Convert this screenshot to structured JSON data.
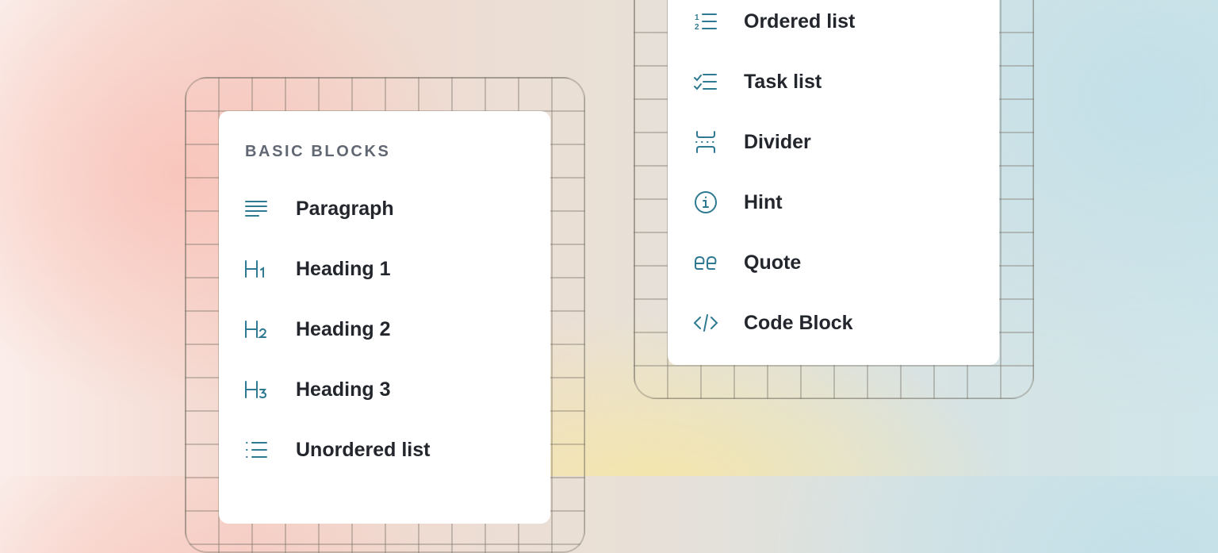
{
  "left_menu": {
    "section_label": "BASIC BLOCKS",
    "items": [
      {
        "label": "Paragraph",
        "icon": "paragraph-icon"
      },
      {
        "label": "Heading 1",
        "icon": "heading-1-icon"
      },
      {
        "label": "Heading 2",
        "icon": "heading-2-icon"
      },
      {
        "label": "Heading 3",
        "icon": "heading-3-icon"
      },
      {
        "label": "Unordered list",
        "icon": "unordered-list-icon"
      }
    ]
  },
  "right_menu": {
    "items": [
      {
        "label": "Ordered list",
        "icon": "ordered-list-icon"
      },
      {
        "label": "Task list",
        "icon": "task-list-icon"
      },
      {
        "label": "Divider",
        "icon": "divider-icon"
      },
      {
        "label": "Hint",
        "icon": "info-icon"
      },
      {
        "label": "Quote",
        "icon": "quote-icon"
      },
      {
        "label": "Code Block",
        "icon": "code-icon"
      }
    ]
  },
  "colors": {
    "icon": "#2f7a92",
    "text": "#23262c",
    "section_label": "#626873"
  }
}
